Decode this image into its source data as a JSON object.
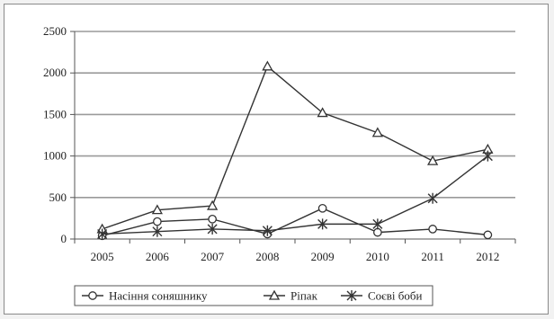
{
  "chart_data": {
    "type": "line",
    "title": "",
    "xlabel": "",
    "ylabel": "",
    "categories": [
      "2005",
      "2006",
      "2007",
      "2008",
      "2009",
      "2010",
      "2011",
      "2012"
    ],
    "ylim": [
      0,
      2500
    ],
    "yticks": [
      0,
      500,
      1000,
      1500,
      2000,
      2500
    ],
    "grid": "horizontal",
    "legend_position": "bottom",
    "series": [
      {
        "name": "Насіння соняшнику",
        "marker": "circle",
        "color": "#333333",
        "values": [
          40,
          210,
          240,
          60,
          370,
          80,
          120,
          50
        ]
      },
      {
        "name": "Ріпак",
        "marker": "triangle",
        "color": "#333333",
        "values": [
          120,
          350,
          400,
          2080,
          1520,
          1280,
          940,
          1080
        ]
      },
      {
        "name": "Соєві боби",
        "marker": "asterisk",
        "color": "#333333",
        "values": [
          60,
          90,
          120,
          100,
          180,
          180,
          490,
          1000
        ]
      }
    ]
  }
}
